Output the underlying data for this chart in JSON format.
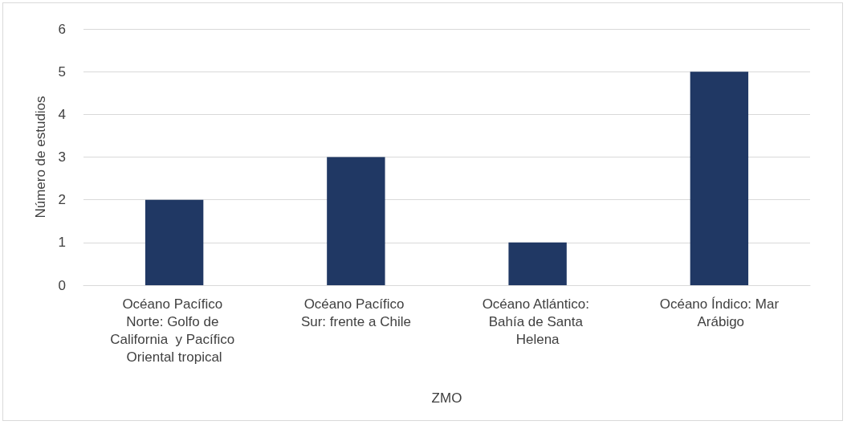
{
  "chart_data": {
    "type": "bar",
    "categories": [
      "Océano Pacífico Norte: Golfo de California  y Pacífico Oriental tropical",
      "Océano Pacífico Sur: frente a Chile",
      "Océano Atlántico: Bahía de Santa Helena",
      "Océano Índico: Mar Arábigo"
    ],
    "values": [
      2,
      3,
      1,
      5
    ],
    "color": "#203864",
    "xlabel": "ZMO",
    "ylabel": "Número de estudios",
    "ylim": [
      0,
      6
    ],
    "yticks": [
      0,
      1,
      2,
      3,
      4,
      5,
      6
    ],
    "grid": "y"
  }
}
